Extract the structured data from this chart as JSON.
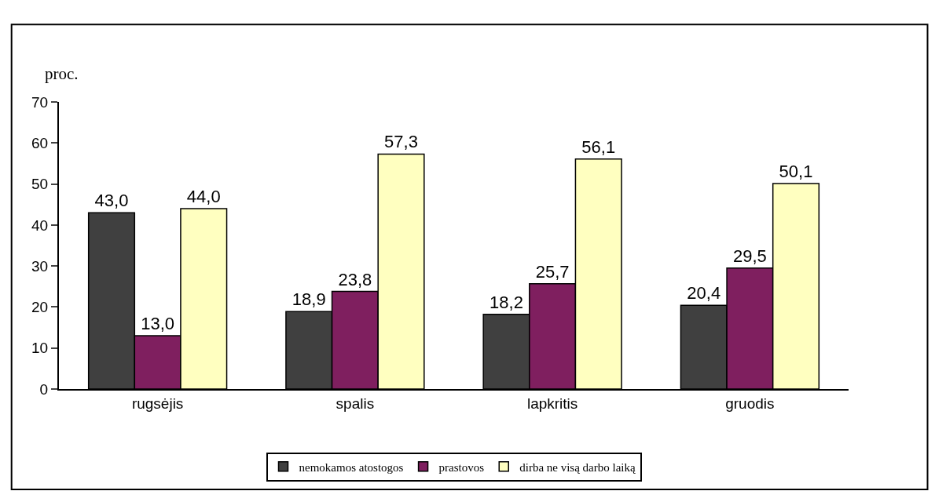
{
  "chart_data": {
    "type": "bar",
    "ylabel": "proc.",
    "categories": [
      "rugsėjis",
      "spalis",
      "lapkritis",
      "gruodis"
    ],
    "series": [
      {
        "name": "nemokamos atostogos",
        "color": "#404040",
        "values": [
          43.0,
          18.9,
          18.2,
          20.4
        ],
        "value_labels": [
          "43,0",
          "18,9",
          "18,2",
          "20,4"
        ]
      },
      {
        "name": "prastovos",
        "color": "#7f1f5f",
        "values": [
          13.0,
          23.8,
          25.7,
          29.5
        ],
        "value_labels": [
          "13,0",
          "23,8",
          "25,7",
          "29,5"
        ]
      },
      {
        "name": "dirba ne visą darbo laiką",
        "color": "#ffffc0",
        "values": [
          44.0,
          57.3,
          56.1,
          50.1
        ],
        "value_labels": [
          "44,0",
          "57,3",
          "56,1",
          "50,1"
        ]
      }
    ],
    "ylim": [
      0,
      70
    ],
    "yticks": [
      0,
      10,
      20,
      30,
      40,
      50,
      60,
      70
    ],
    "grid": false,
    "legend": "bottom"
  }
}
